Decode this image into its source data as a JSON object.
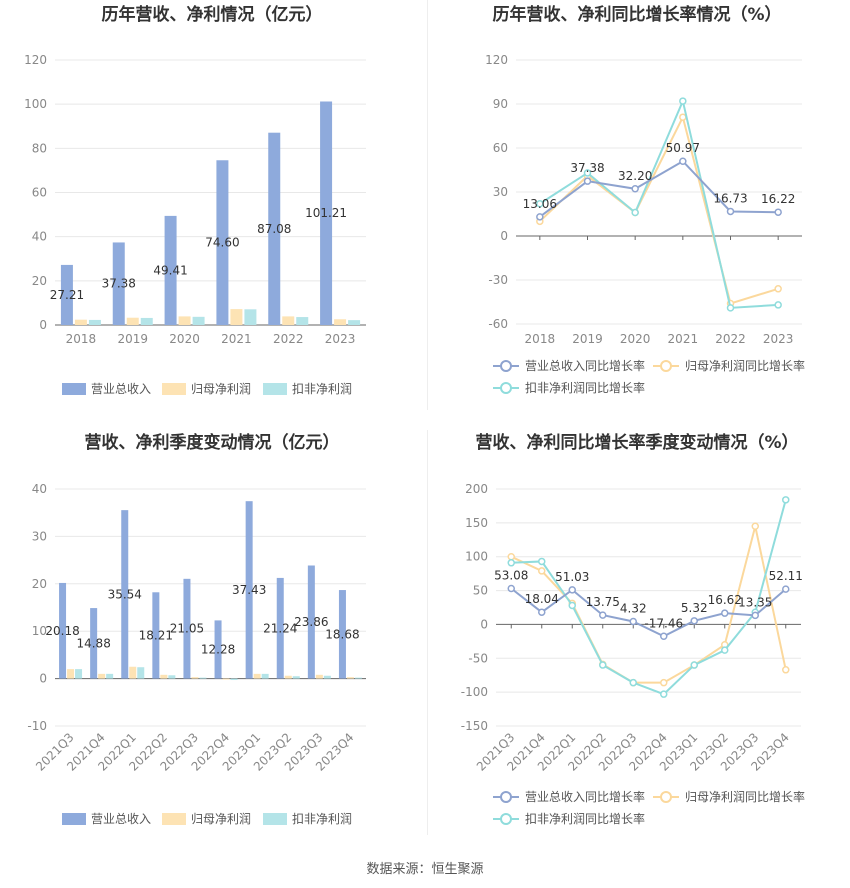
{
  "source": "数据来源：恒生聚源",
  "colors": {
    "revenue": "#8eaadc",
    "net_profit": "#fde3b4",
    "deducted_profit": "#b4e4e8",
    "revenue_line": "#8ea3cf",
    "net_line": "#fbd89c",
    "deducted_line": "#8fdcdc"
  },
  "chart_data": [
    {
      "type": "bar",
      "title": "历年营收、净利情况（亿元）",
      "categories": [
        "2018",
        "2019",
        "2020",
        "2021",
        "2022",
        "2023"
      ],
      "ylim": [
        0,
        120
      ],
      "yticks": [
        0,
        20,
        40,
        60,
        80,
        100,
        120
      ],
      "series": [
        {
          "name": "营业总收入",
          "values": [
            27.21,
            37.38,
            49.41,
            74.6,
            87.08,
            101.21
          ],
          "labels": [
            "27.21",
            "37.38",
            "49.41",
            "74.60",
            "87.08",
            "101.21"
          ]
        },
        {
          "name": "归母净利润",
          "values": [
            2.4,
            3.3,
            3.9,
            7.2,
            3.9,
            2.6
          ]
        },
        {
          "name": "扣非净利润",
          "values": [
            2.3,
            3.2,
            3.7,
            7.1,
            3.6,
            2.2
          ]
        }
      ],
      "legend": "bottom",
      "grid": true
    },
    {
      "type": "line",
      "title": "历年营收、净利同比增长率情况（%）",
      "categories": [
        "2018",
        "2019",
        "2020",
        "2021",
        "2022",
        "2023"
      ],
      "ylim": [
        -60,
        120
      ],
      "yticks": [
        -60,
        -30,
        0,
        30,
        60,
        90,
        120
      ],
      "series": [
        {
          "name": "营业总收入同比增长率",
          "values": [
            13.06,
            37.38,
            32.2,
            50.97,
            16.73,
            16.22
          ],
          "labels": [
            "13.06",
            "37.38",
            "32.20",
            "50.97",
            "16.73",
            "16.22"
          ]
        },
        {
          "name": "归母净利润同比增长率",
          "values": [
            10,
            41,
            16,
            81,
            -46,
            -36
          ]
        },
        {
          "name": "扣非净利润同比增长率",
          "values": [
            22,
            43,
            16,
            92,
            -49,
            -47
          ]
        }
      ],
      "legend": "bottom",
      "grid": true
    },
    {
      "type": "bar",
      "title": "营收、净利季度变动情况（亿元）",
      "categories": [
        "2021Q3",
        "2021Q4",
        "2022Q1",
        "2022Q2",
        "2022Q3",
        "2022Q4",
        "2023Q1",
        "2023Q2",
        "2023Q3",
        "2023Q4"
      ],
      "ylim": [
        -10,
        40
      ],
      "yticks": [
        -10,
        0,
        10,
        20,
        30,
        40
      ],
      "series": [
        {
          "name": "营业总收入",
          "values": [
            20.18,
            14.88,
            35.54,
            18.21,
            21.05,
            12.28,
            37.43,
            21.24,
            23.86,
            18.68
          ],
          "labels": [
            "20.18",
            "14.88",
            "35.54",
            "18.21",
            "21.05",
            "12.28",
            "37.43",
            "21.24",
            "23.86",
            "18.68"
          ]
        },
        {
          "name": "归母净利润",
          "values": [
            2.0,
            1.0,
            2.5,
            0.8,
            0.3,
            -0.2,
            1.0,
            0.6,
            0.8,
            0.3
          ]
        },
        {
          "name": "扣非净利润",
          "values": [
            2.0,
            1.0,
            2.4,
            0.7,
            0.2,
            -0.3,
            1.0,
            0.5,
            0.6,
            0.2
          ]
        }
      ],
      "legend": "bottom",
      "grid": true
    },
    {
      "type": "line",
      "title": "营收、净利同比增长率季度变动情况（%）",
      "categories": [
        "2021Q3",
        "2021Q4",
        "2022Q1",
        "2022Q2",
        "2022Q3",
        "2022Q4",
        "2023Q1",
        "2023Q2",
        "2023Q3",
        "2023Q4"
      ],
      "ylim": [
        -150,
        200
      ],
      "yticks": [
        -150,
        -100,
        -50,
        0,
        50,
        100,
        150,
        200
      ],
      "series": [
        {
          "name": "营业总收入同比增长率",
          "values": [
            53.08,
            18.04,
            51.03,
            13.75,
            4.32,
            -17.46,
            5.32,
            16.62,
            13.35,
            52.11
          ],
          "labels": [
            "53.08",
            "18.04",
            "51.03",
            "13.75",
            "4.32",
            "-17.46",
            "5.32",
            "16.62",
            "13.35",
            "52.11"
          ]
        },
        {
          "name": "归母净利润同比增长率",
          "values": [
            100,
            79,
            31,
            -59,
            -86,
            -86,
            -60,
            -30,
            145,
            -67
          ]
        },
        {
          "name": "扣非净利润同比增长率",
          "values": [
            91,
            93,
            28,
            -60,
            -86,
            -103,
            -60,
            -38,
            18,
            184
          ]
        }
      ],
      "legend": "bottom",
      "grid": true
    }
  ]
}
